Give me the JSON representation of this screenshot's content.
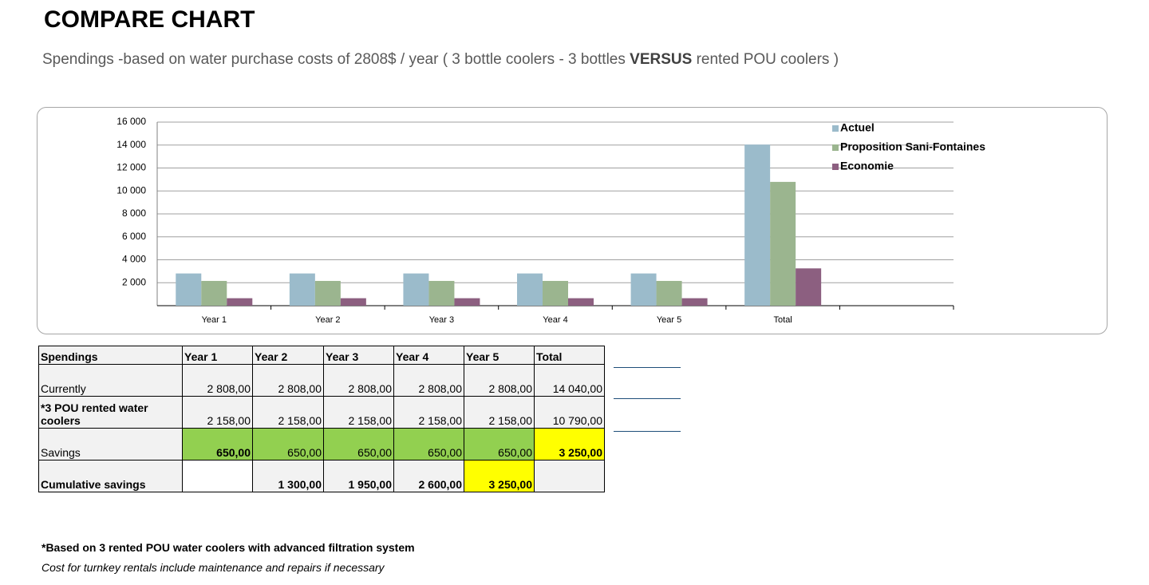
{
  "header": {
    "title": "COMPARE CHART",
    "subtitle": [
      "Spendings -based on water purchase costs of 2808$ / year ( 3 bottle coolers - 3 bottles",
      "VERSUS",
      "rented POU coolers )"
    ]
  },
  "chart_data": {
    "type": "bar",
    "categories": [
      "Year 1",
      "Year 2",
      "Year 3",
      "Year 4",
      "Year 5",
      "Total",
      null
    ],
    "series": [
      {
        "name": "Actuel",
        "color": "#9bbbcb",
        "values": [
          2808,
          2808,
          2808,
          2808,
          2808,
          14040,
          null
        ]
      },
      {
        "name": "Proposition Sani-Fontaines",
        "color": "#9bb58f",
        "values": [
          2158,
          2158,
          2158,
          2158,
          2158,
          10790,
          null
        ]
      },
      {
        "name": "Economie",
        "color": "#8c5f80",
        "values": [
          650,
          650,
          650,
          650,
          650,
          3250,
          null
        ]
      }
    ],
    "ylim": [
      0,
      16000
    ],
    "yticks": [
      {
        "value": 2000,
        "label": "2 000"
      },
      {
        "value": 4000,
        "label": "4 000"
      },
      {
        "value": 6000,
        "label": "6 000"
      },
      {
        "value": 8000,
        "label": "8 000"
      },
      {
        "value": 10000,
        "label": "10 000"
      },
      {
        "value": 12000,
        "label": "12 000"
      },
      {
        "value": 14000,
        "label": "14 000"
      },
      {
        "value": 16000,
        "label": "16 000"
      }
    ],
    "grid": true,
    "legend": "top-right"
  },
  "table": {
    "header": [
      "Spendings",
      "Year 1",
      "Year 2",
      "Year 3",
      "Year 4",
      "Year 5",
      "Total"
    ],
    "rows": [
      [
        "Currently",
        "2 808,00",
        "2 808,00",
        "2 808,00",
        "2 808,00",
        "2 808,00",
        "14 040,00"
      ],
      [
        "*3 POU rented water coolers",
        "2 158,00",
        "2 158,00",
        "2 158,00",
        "2 158,00",
        "2 158,00",
        "10 790,00"
      ],
      [
        "Savings",
        "650,00",
        "650,00",
        "650,00",
        "650,00",
        "650,00",
        "3 250,00"
      ],
      [
        "Cumulative savings",
        "",
        "1 300,00",
        "1 950,00",
        "2 600,00",
        "3 250,00",
        ""
      ]
    ]
  },
  "notes": [
    "*Based on 3 rented POU water coolers with advanced filtration system",
    "Cost for turnkey rentals include maintenance and repairs if necessary"
  ]
}
